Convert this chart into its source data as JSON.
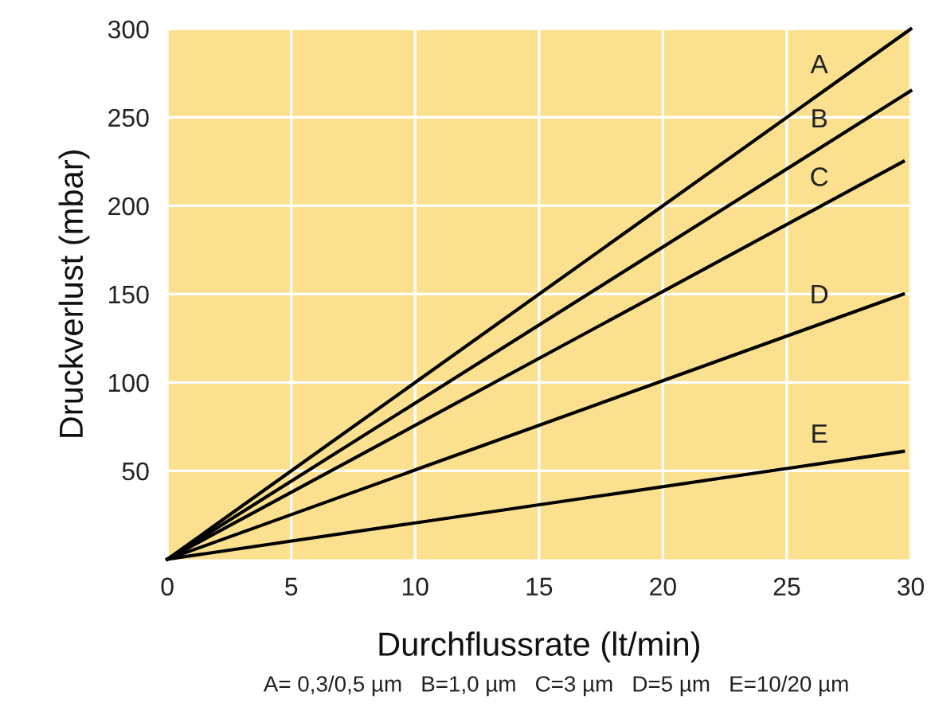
{
  "chart_data": {
    "type": "line",
    "xlabel": "Durchflussrate (lt/min)",
    "ylabel": "Druckverlust (mbar)",
    "xlim": [
      0,
      30
    ],
    "ylim": [
      0,
      300
    ],
    "xticks": [
      0,
      5,
      10,
      15,
      20,
      25,
      30
    ],
    "yticks": [
      50,
      100,
      150,
      200,
      250,
      300
    ],
    "grid": true,
    "legend": false,
    "marker": "none",
    "line_style": "solid",
    "series": [
      {
        "name": "A",
        "color": "#000000",
        "x": [
          0,
          30
        ],
        "values": [
          0,
          300
        ]
      },
      {
        "name": "B",
        "color": "#000000",
        "x": [
          0,
          30
        ],
        "values": [
          0,
          265
        ]
      },
      {
        "name": "C",
        "color": "#000000",
        "x": [
          0,
          29.7
        ],
        "values": [
          0,
          225
        ]
      },
      {
        "name": "D",
        "color": "#000000",
        "x": [
          0,
          29.7
        ],
        "values": [
          0,
          150
        ]
      },
      {
        "name": "E",
        "color": "#000000",
        "x": [
          0,
          29.7
        ],
        "values": [
          0,
          61
        ]
      }
    ],
    "annotations": [
      "A= 0,3/0,5 µm   B=1,0 µm   C=3 µm   D=5 µm   E=10/20 µm"
    ]
  }
}
